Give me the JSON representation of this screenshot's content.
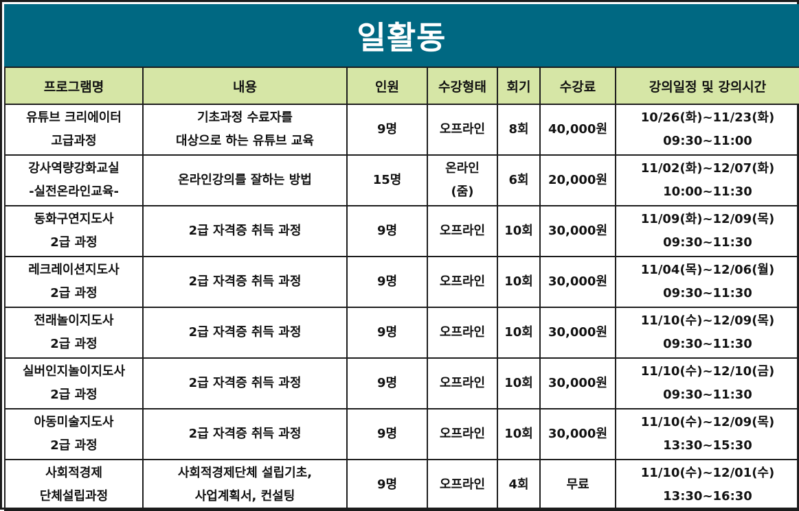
{
  "title": "일활동",
  "colors": {
    "title_bg": "#006882",
    "header_bg": "#d6e6a6",
    "border": "#1c1c1c"
  },
  "headers": [
    "프로그램명",
    "내용",
    "인원",
    "수강형태",
    "회기",
    "수강료",
    "강의일정 및 강의시간"
  ],
  "rows": [
    {
      "program": [
        "유튜브 크리에이터",
        "고급과정"
      ],
      "content": [
        "기초과정 수료자를",
        "대상으로 하는 유튜브 교육"
      ],
      "people": "9명",
      "format": [
        "오프라인"
      ],
      "sessions": "8회",
      "fee": "40,000원",
      "schedule": [
        "10/26(화)~11/23(화)",
        "09:30~11:00"
      ]
    },
    {
      "program": [
        "강사역량강화교실",
        "-실전온라인교육-"
      ],
      "content": [
        "온라인강의를 잘하는 방법"
      ],
      "people": "15명",
      "format": [
        "온라인",
        "(줌)"
      ],
      "sessions": "6회",
      "fee": "20,000원",
      "schedule": [
        "11/02(화)~12/07(화)",
        "10:00~11:30"
      ]
    },
    {
      "program": [
        "동화구연지도사",
        "2급 과정"
      ],
      "content": [
        "2급 자격증 취득 과정"
      ],
      "people": "9명",
      "format": [
        "오프라인"
      ],
      "sessions": "10회",
      "fee": "30,000원",
      "schedule": [
        "11/09(화)~12/09(목)",
        "09:30~11:30"
      ]
    },
    {
      "program": [
        "레크레이션지도사",
        "2급 과정"
      ],
      "content": [
        "2급 자격증 취득 과정"
      ],
      "people": "9명",
      "format": [
        "오프라인"
      ],
      "sessions": "10회",
      "fee": "30,000원",
      "schedule": [
        "11/04(목)~12/06(월)",
        "09:30~11:30"
      ]
    },
    {
      "program": [
        "전래놀이지도사",
        "2급 과정"
      ],
      "content": [
        "2급 자격증 취득 과정"
      ],
      "people": "9명",
      "format": [
        "오프라인"
      ],
      "sessions": "10회",
      "fee": "30,000원",
      "schedule": [
        "11/10(수)~12/09(목)",
        "09:30~11:30"
      ]
    },
    {
      "program": [
        "실버인지놀이지도사",
        "2급 과정"
      ],
      "content": [
        "2급 자격증 취득 과정"
      ],
      "people": "9명",
      "format": [
        "오프라인"
      ],
      "sessions": "10회",
      "fee": "30,000원",
      "schedule": [
        "11/10(수)~12/10(금)",
        "09:30~11:30"
      ]
    },
    {
      "program": [
        "아동미술지도사",
        "2급 과정"
      ],
      "content": [
        "2급 자격증 취득 과정"
      ],
      "people": "9명",
      "format": [
        "오프라인"
      ],
      "sessions": "10회",
      "fee": "30,000원",
      "schedule": [
        "11/10(수)~12/09(목)",
        "13:30~15:30"
      ]
    },
    {
      "program": [
        "사회적경제",
        "단체설립과정"
      ],
      "content": [
        "사회적경제단체 설립기초,",
        "사업계획서, 컨설팅"
      ],
      "people": "9명",
      "format": [
        "오프라인"
      ],
      "sessions": "4회",
      "fee": "무료",
      "schedule": [
        "11/10(수)~12/01(수)",
        "13:30~16:30"
      ]
    }
  ]
}
